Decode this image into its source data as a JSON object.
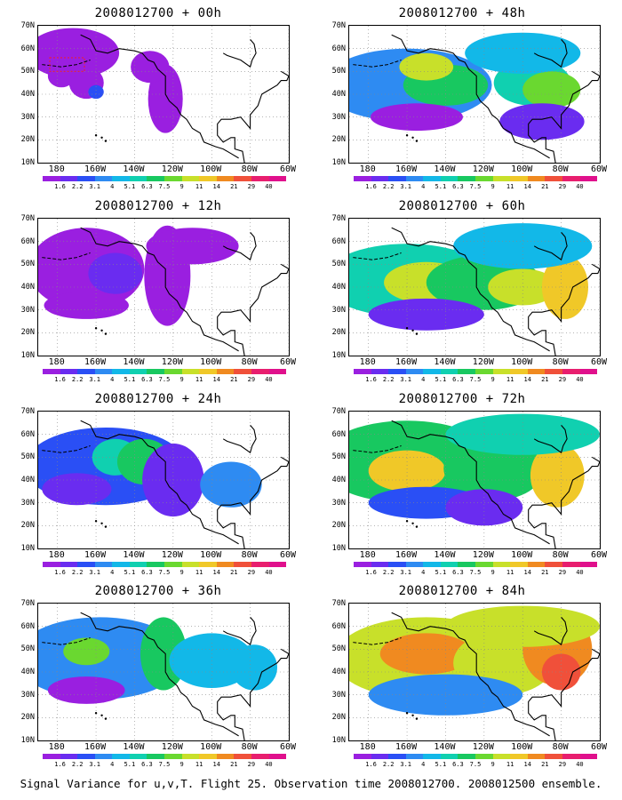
{
  "panels": [
    {
      "title": "2008012700 + 00h",
      "level": 0
    },
    {
      "title": "2008012700 + 48h",
      "level": 4
    },
    {
      "title": "2008012700 + 12h",
      "level": 1
    },
    {
      "title": "2008012700 + 60h",
      "level": 5
    },
    {
      "title": "2008012700 + 24h",
      "level": 2
    },
    {
      "title": "2008012700 + 72h",
      "level": 6
    },
    {
      "title": "2008012700 + 36h",
      "level": 3
    },
    {
      "title": "2008012700 + 84h",
      "level": 7
    }
  ],
  "lat_labels": [
    "70N",
    "60N",
    "50N",
    "40N",
    "30N",
    "20N",
    "10N"
  ],
  "lon_labels": [
    "180",
    "160W",
    "140W",
    "120W",
    "100W",
    "80W",
    "60W"
  ],
  "colorbar": {
    "labels": [
      "1.6",
      "2.2",
      "3.1",
      "4",
      "5.1",
      "6.3",
      "7.5",
      "9",
      "11",
      "14",
      "21",
      "29",
      "40"
    ],
    "colors": [
      "#9a1fe0",
      "#6a2cf0",
      "#2a4ff5",
      "#2e8bf2",
      "#12b8e8",
      "#10d0b0",
      "#18c860",
      "#6ad830",
      "#c8e02a",
      "#f0c828",
      "#f08a20",
      "#f0503a",
      "#e81e6e",
      "#e0108c"
    ]
  },
  "footer": "Signal Variance for u,v,T. Flight 25. Observation time 2008012700. 2008012500 ensemble."
}
